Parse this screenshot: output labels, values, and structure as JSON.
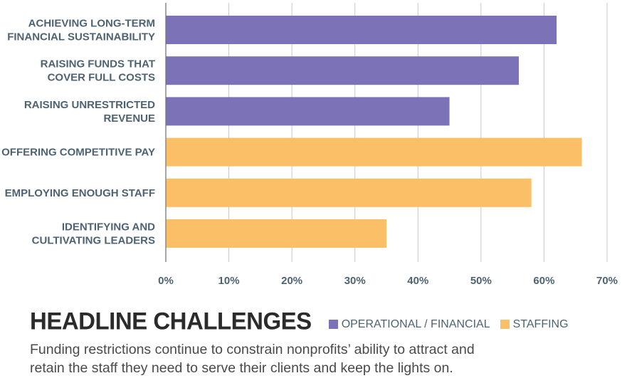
{
  "chart_data": {
    "type": "bar",
    "orientation": "horizontal",
    "categories": [
      [
        "ACHIEVING LONG-TERM",
        "FINANCIAL SUSTAINABILITY"
      ],
      [
        "RAISING FUNDS THAT",
        "COVER FULL COSTS"
      ],
      [
        "RAISING UNRESTRICTED",
        "REVENUE"
      ],
      [
        "OFFERING COMPETITIVE PAY"
      ],
      [
        "EMPLOYING ENOUGH STAFF"
      ],
      [
        "IDENTIFYING AND",
        "CULTIVATING LEADERS"
      ]
    ],
    "values": [
      62,
      56,
      45,
      66,
      58,
      35
    ],
    "groups": [
      "operational",
      "operational",
      "operational",
      "staffing",
      "staffing",
      "staffing"
    ],
    "xlim": [
      0,
      70
    ],
    "xticks": [
      "0%",
      "10%",
      "20%",
      "30%",
      "40%",
      "50%",
      "60%",
      "70%"
    ],
    "grid": "vertical",
    "legend": [
      {
        "key": "operational",
        "label": "OPERATIONAL / FINANCIAL",
        "color": "#7b72b8"
      },
      {
        "key": "staffing",
        "label": "STAFFING",
        "color": "#fbbf67"
      }
    ],
    "legend_position": "bottom"
  },
  "footer": {
    "title": "HEADLINE CHALLENGES",
    "description_line1": "Funding restrictions continue to constrain nonprofits’ ability to attract and",
    "description_line2": "retain the staff they need to serve their clients and keep the lights on."
  }
}
